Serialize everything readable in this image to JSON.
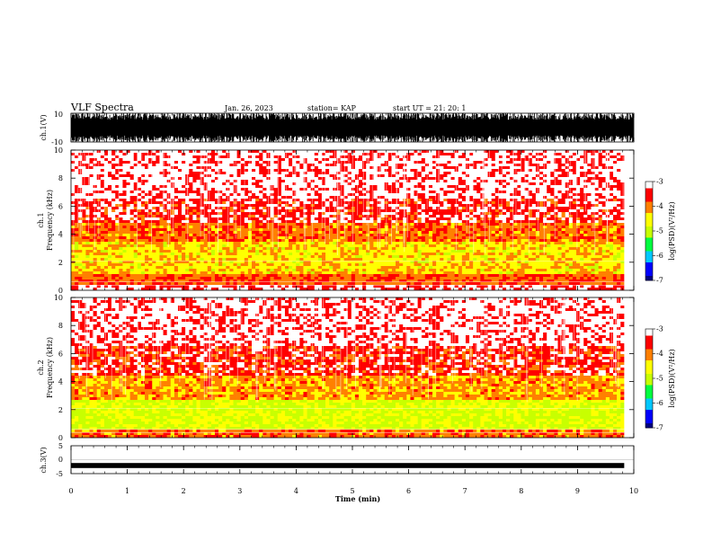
{
  "header": {
    "title": "VLF Spectra",
    "date": "Jan. 26, 2023",
    "station": "station= KAP",
    "start": "start  UT =   21: 20: 1"
  },
  "colors": {
    "background": "#ffffff",
    "frame": "#000000",
    "colormap": [
      "#000080",
      "#0000ff",
      "#00c8ff",
      "#00ff40",
      "#c8ff00",
      "#ffff00",
      "#ff8000",
      "#ff0000",
      "#ffffff"
    ]
  },
  "chart_data": [
    {
      "type": "line",
      "ylabel": "ch.1(V)",
      "ylim": [
        -10,
        10
      ],
      "yticks": [
        "10",
        "-10"
      ],
      "xlim": [
        0,
        10
      ],
      "description_of_signal": "dense high-amplitude broadband waveform saturating most of the range"
    },
    {
      "type": "heatmap",
      "ylabel": "ch.1\nFrequency  (kHz)",
      "ylabel_lines": [
        "ch.1",
        "Frequency  (kHz)"
      ],
      "ylim": [
        0,
        10
      ],
      "yticks": [
        "0",
        "2",
        "4",
        "6",
        "8",
        "10"
      ],
      "xlim": [
        0,
        9.83
      ],
      "colorbar": {
        "label": "log(PSD)(V²/Hz)",
        "ticks": [
          "-3",
          "-4",
          "-5",
          "-6",
          "-7"
        ],
        "range": [
          -7,
          -3
        ]
      },
      "bands": [
        {
          "f": [
            0.0,
            0.3
          ],
          "level": -3.2
        },
        {
          "f": [
            0.3,
            1.2
          ],
          "level": -3.8
        },
        {
          "f": [
            1.2,
            3.5
          ],
          "level": -4.4
        },
        {
          "f": [
            3.5,
            4.8
          ],
          "level": -3.9
        },
        {
          "f": [
            4.8,
            6.5
          ],
          "level": -3.4
        },
        {
          "f": [
            6.5,
            10.0
          ],
          "level": -3.15
        }
      ]
    },
    {
      "type": "heatmap",
      "ylabel_lines": [
        "ch.2",
        "Frequency  (kHz)"
      ],
      "ylim": [
        0,
        10
      ],
      "yticks": [
        "0",
        "2",
        "4",
        "6",
        "8",
        "10"
      ],
      "xlim": [
        0,
        9.83
      ],
      "colorbar": {
        "label": "log(PSD)(V²/Hz)",
        "ticks": [
          "-3",
          "-4",
          "-5",
          "-6",
          "-7"
        ],
        "range": [
          -7,
          -3
        ]
      },
      "bands": [
        {
          "f": [
            0.0,
            0.5
          ],
          "level": -3.9
        },
        {
          "f": [
            0.5,
            2.6
          ],
          "level": -4.8
        },
        {
          "f": [
            2.6,
            4.5
          ],
          "level": -4.1
        },
        {
          "f": [
            4.5,
            6.5
          ],
          "level": -3.5
        },
        {
          "f": [
            6.5,
            10.0
          ],
          "level": -3.15
        }
      ]
    },
    {
      "type": "line",
      "ylabel": "ch.3(V)",
      "ylim": [
        -5,
        5
      ],
      "yticks": [
        "5",
        "0",
        "-5"
      ],
      "xlim": [
        0,
        10
      ],
      "description_of_signal": "narrow band near 0 V"
    }
  ],
  "x_axis": {
    "label": "Time  (min)",
    "ticks": [
      "0",
      "1",
      "2",
      "3",
      "4",
      "5",
      "6",
      "7",
      "8",
      "9",
      "10"
    ]
  }
}
